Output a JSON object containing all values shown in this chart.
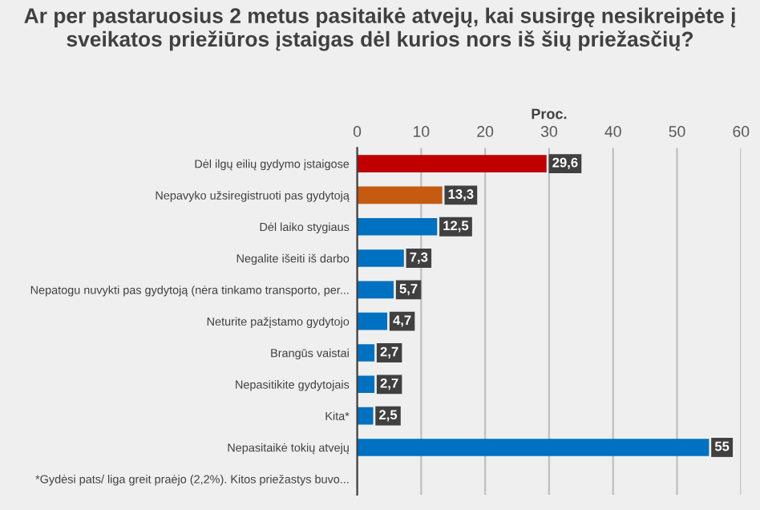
{
  "chart_data": {
    "type": "bar",
    "orientation": "horizontal",
    "title": "Ar per pastaruosius 2 metus pasitaikė atvejų, kai susirgę nesikreipėte į sveikatos priežiūros įstaigas dėl kurios nors iš šių priežasčių?",
    "xlabel": "Proc.",
    "categories": [
      "Dėl ilgų eilių gydymo įstaigose",
      "Nepavyko užsiregistruoti pas gydytoją",
      "Dėl laiko stygiaus",
      "Negalite išeiti iš darbo",
      "Nepatogu nuvykti pas gydytoją (nėra tinkamo transporto, per...",
      "Neturite pažįstamo gydytojo",
      "Brangūs vaistai",
      "Nepasitikite gydytojais",
      "Kita*",
      "Nepasitaikė tokių atvejų",
      "*Gydėsi pats/ liga greit praėjo (2,2%). Kitos priežastys buvo..."
    ],
    "values": [
      29.6,
      13.3,
      12.5,
      7.3,
      5.7,
      4.7,
      2.7,
      2.7,
      2.5,
      55,
      null
    ],
    "value_labels": [
      "29,6",
      "13,3",
      "12,5",
      "7,3",
      "5,7",
      "4,7",
      "2,7",
      "2,7",
      "2,5",
      "55",
      null
    ],
    "colors": [
      "#c00000",
      "#c55a11",
      "#0070c0",
      "#0070c0",
      "#0070c0",
      "#0070c0",
      "#0070c0",
      "#0070c0",
      "#0070c0",
      "#0070c0",
      "#0070c0"
    ],
    "xlim": [
      0,
      60
    ],
    "xticks": [
      0,
      10,
      20,
      30,
      40,
      50,
      60
    ],
    "grid": "x"
  }
}
